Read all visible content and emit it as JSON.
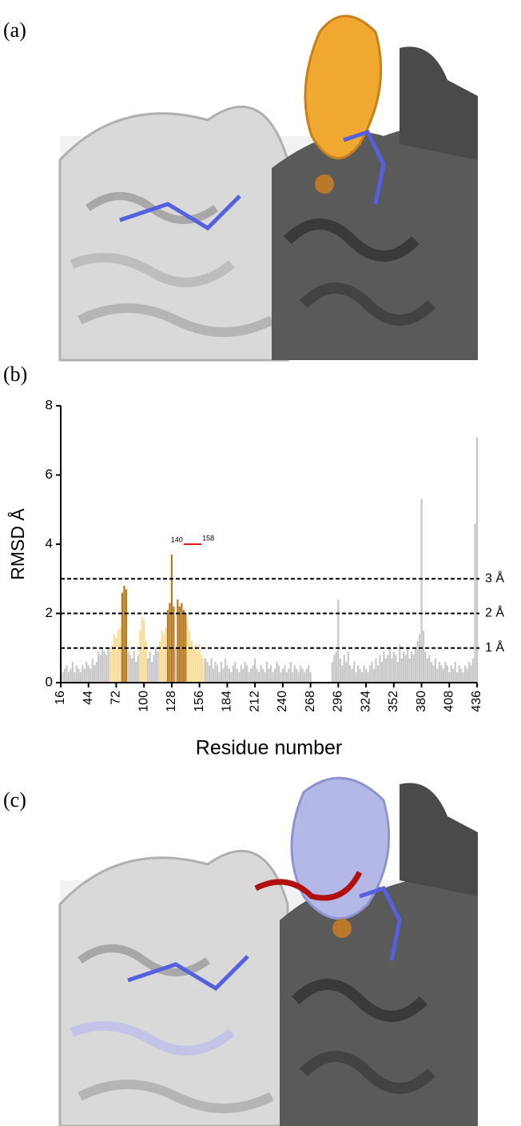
{
  "panels": [
    "(a)",
    "(b)",
    "(c)"
  ],
  "chart_data": {
    "type": "bar",
    "xlabel": "Residue number",
    "ylabel": "RMSD Å",
    "xlim": [
      16,
      436
    ],
    "ylim": [
      0,
      8
    ],
    "xticks": [
      16,
      44,
      72,
      100,
      128,
      156,
      184,
      212,
      240,
      268,
      296,
      324,
      352,
      380,
      408,
      436
    ],
    "yticks": [
      0,
      2,
      4,
      6,
      8
    ],
    "hlines": [
      {
        "value": 3,
        "label": "3 Å"
      },
      {
        "value": 2,
        "label": "2 Å"
      },
      {
        "value": 1,
        "label": "1 Å"
      }
    ],
    "span": [
      140,
      158
    ],
    "span_y": 4,
    "span_color": "#e8141b",
    "series": [
      {
        "color": "#c8c8c8",
        "x": [
          16,
          18,
          20,
          22,
          24,
          26,
          28,
          30,
          32,
          34,
          36,
          38,
          40,
          42,
          44,
          46,
          48,
          50,
          52,
          54,
          56,
          58,
          60,
          62,
          64,
          84,
          86,
          88,
          90,
          92,
          94,
          104,
          106,
          108,
          110,
          112,
          114,
          132,
          162,
          164,
          166,
          168,
          170,
          172,
          174,
          176,
          178,
          180,
          182,
          184,
          186,
          188,
          190,
          192,
          194,
          196,
          198,
          200,
          202,
          204,
          206,
          208,
          210,
          212,
          214,
          216,
          218,
          220,
          222,
          224,
          226,
          228,
          230,
          232,
          234,
          236,
          238,
          240,
          242,
          244,
          246,
          248,
          250,
          252,
          254,
          256,
          258,
          260,
          262,
          264,
          266,
          268,
          290,
          292,
          294,
          296,
          298,
          300,
          302,
          304,
          306,
          308,
          310,
          312,
          314,
          316,
          318,
          320,
          322,
          324,
          326,
          328,
          330,
          332,
          334,
          336,
          338,
          340,
          342,
          344,
          346,
          348,
          350,
          352,
          354,
          356,
          358,
          360,
          362,
          364,
          366,
          368,
          370,
          372,
          374,
          376,
          378,
          380,
          382,
          384,
          386,
          388,
          390,
          392,
          394,
          396,
          398,
          400,
          402,
          404,
          406,
          408,
          410,
          412,
          414,
          416,
          418,
          420,
          422,
          424,
          426,
          428,
          430,
          432,
          434,
          436
        ],
        "values": [
          0.7,
          0.3,
          0.4,
          0.5,
          0.3,
          0.4,
          0.6,
          0.3,
          0.5,
          0.4,
          0.3,
          0.5,
          0.4,
          0.6,
          0.5,
          0.4,
          0.7,
          0.5,
          0.6,
          0.9,
          0.8,
          1.0,
          0.9,
          0.8,
          1.0,
          0.9,
          0.8,
          0.7,
          0.9,
          0.6,
          0.8,
          0.7,
          0.9,
          0.6,
          0.8,
          1.0,
          0.9,
          1.0,
          0.7,
          0.6,
          0.5,
          0.7,
          0.4,
          0.6,
          0.5,
          0.3,
          0.6,
          0.4,
          0.7,
          0.5,
          0.4,
          0.3,
          0.5,
          0.6,
          0.4,
          0.3,
          0.5,
          0.4,
          0.6,
          0.5,
          0.3,
          0.4,
          0.5,
          0.7,
          0.4,
          0.3,
          0.5,
          0.4,
          0.3,
          0.6,
          0.4,
          0.5,
          0.3,
          0.4,
          0.6,
          0.5,
          0.3,
          0.4,
          0.5,
          0.3,
          0.4,
          0.6,
          0.3,
          0.5,
          0.4,
          0.3,
          0.5,
          0.4,
          0.3,
          0.4,
          0.5,
          0.3,
          0.6,
          0.8,
          0.9,
          2.4,
          0.7,
          0.5,
          0.8,
          0.6,
          0.9,
          0.5,
          0.4,
          0.6,
          0.3,
          0.5,
          0.4,
          0.3,
          0.5,
          0.4,
          0.3,
          0.5,
          0.6,
          0.4,
          0.7,
          0.5,
          0.8,
          0.6,
          0.9,
          0.7,
          0.8,
          1.0,
          0.7,
          0.9,
          0.8,
          0.6,
          1.1,
          0.7,
          0.9,
          0.8,
          1.0,
          0.7,
          0.9,
          0.8,
          1.0,
          1.2,
          1.4,
          5.3,
          1.5,
          0.9,
          0.7,
          0.8,
          0.6,
          0.5,
          0.7,
          0.4,
          0.6,
          0.5,
          0.4,
          0.6,
          0.5,
          0.3,
          0.5,
          0.4,
          0.6,
          0.3,
          0.5,
          0.4,
          0.3,
          0.5,
          0.4,
          0.6,
          0.5,
          0.7,
          4.6,
          7.1
        ]
      },
      {
        "color": "#f7dc9a",
        "x": [
          66,
          68,
          70,
          72,
          74,
          76,
          96,
          98,
          100,
          102,
          116,
          118,
          120,
          122,
          144,
          146,
          148,
          150,
          152,
          154,
          156,
          158,
          160
        ],
        "values": [
          0.9,
          1.1,
          1.4,
          1.3,
          1.5,
          1.6,
          1.5,
          1.9,
          1.8,
          1.2,
          1.2,
          1.5,
          1.4,
          1.6,
          1.8,
          1.5,
          1.2,
          1.0,
          1.1,
          0.9,
          1.1,
          0.8,
          0.7
        ]
      },
      {
        "color": "#b87a1e",
        "x": [
          78,
          80,
          82,
          124,
          126,
          128,
          130,
          134,
          136,
          138,
          140,
          142
        ],
        "values": [
          2.6,
          2.8,
          2.7,
          2.1,
          2.3,
          3.7,
          2.2,
          2.4,
          2.2,
          2.3,
          2.1,
          2.0
        ]
      }
    ]
  }
}
